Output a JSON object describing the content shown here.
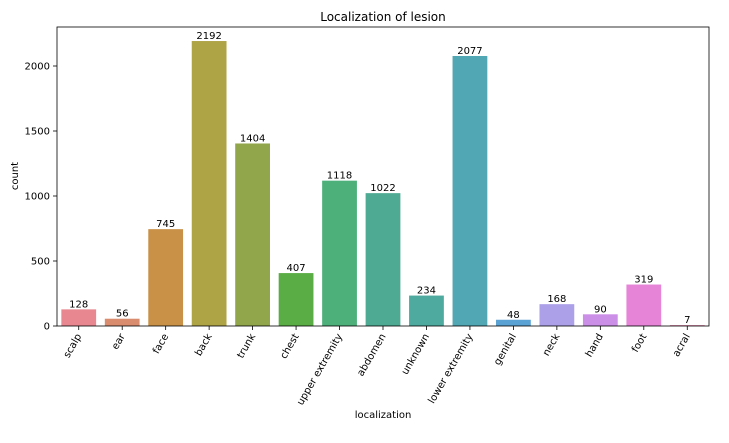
{
  "chart_data": {
    "type": "bar",
    "title": "Localization of lesion",
    "xlabel": "localization",
    "ylabel": "count",
    "categories": [
      "scalp",
      "ear",
      "face",
      "back",
      "trunk",
      "chest",
      "upper extremity",
      "abdomen",
      "unknown",
      "lower extremity",
      "genital",
      "neck",
      "hand",
      "foot",
      "acral"
    ],
    "values": [
      128,
      56,
      745,
      2192,
      1404,
      407,
      1118,
      1022,
      234,
      2077,
      48,
      168,
      90,
      319,
      7
    ],
    "colors": [
      "#e8878f",
      "#da8c6e",
      "#c99148",
      "#aea345",
      "#91a54a",
      "#5aad45",
      "#4db07a",
      "#4eaa92",
      "#4ea99f",
      "#51a7b4",
      "#5aa2d3",
      "#aca0e8",
      "#cc8fe8",
      "#e684d7",
      "#e88aaf"
    ],
    "ylim": [
      0,
      2300
    ],
    "yticks": [
      0,
      500,
      1000,
      1500,
      2000
    ],
    "grid": false,
    "legend": "none"
  }
}
